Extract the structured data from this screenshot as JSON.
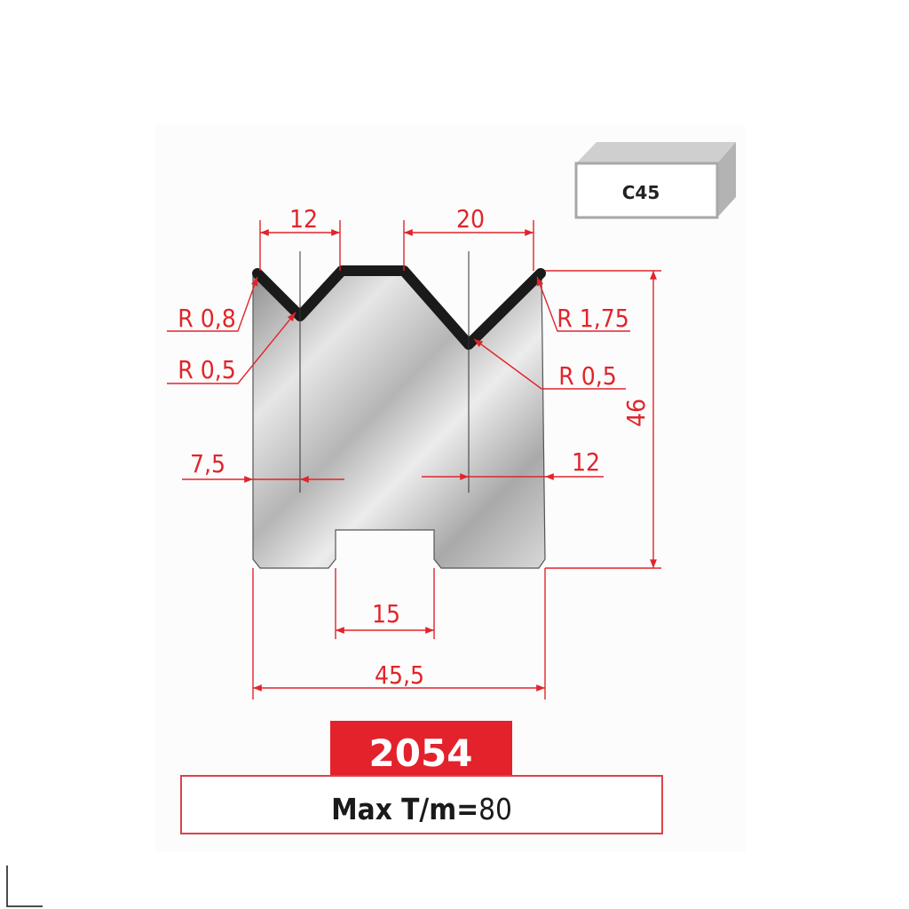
{
  "material": "C45",
  "part_number": "2054",
  "max_load": {
    "label": "Max T/m=",
    "value": "80"
  },
  "dimensions": {
    "left_v_width": "12",
    "right_v_width": "20",
    "left_tip_radius": "R 0,8",
    "left_v_radius": "R 0,5",
    "right_tip_radius": "R 1,75",
    "right_v_radius": "R 0,5",
    "height": "46",
    "left_offset": "7,5",
    "right_offset": "12",
    "slot_width": "15",
    "total_width": "45,5"
  },
  "colors": {
    "accent": "#e0252b",
    "profile": "#1a1a1a",
    "body": "#c8c8c8"
  }
}
